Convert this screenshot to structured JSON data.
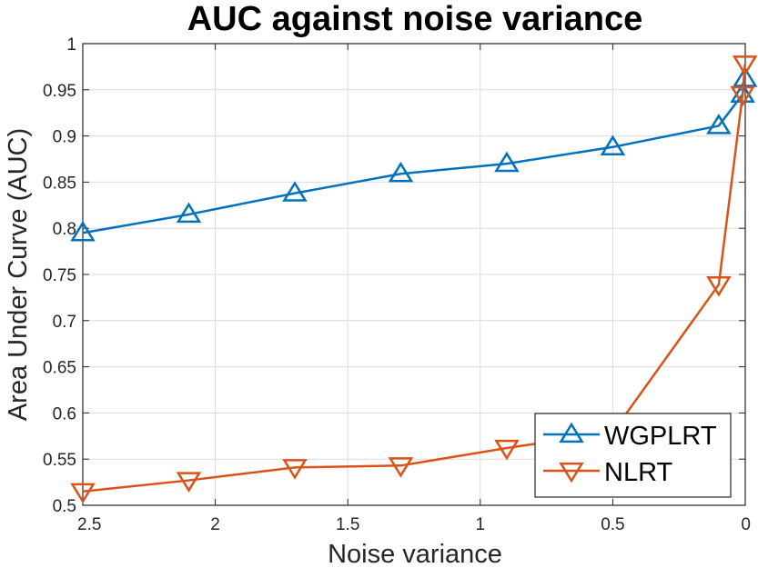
{
  "chart_data": {
    "type": "line",
    "title": "AUC against noise variance",
    "xlabel": "Noise variance",
    "ylabel": "Area Under Curve (AUC)",
    "xlim": [
      2.5,
      0
    ],
    "x_reversed": true,
    "ylim": [
      0.5,
      1
    ],
    "grid": true,
    "legend_position": "bottom-right",
    "xticks": [
      2.5,
      2,
      1.5,
      1,
      0.5,
      0
    ],
    "xtick_labels": [
      "2.5",
      "2",
      "1.5",
      "1",
      "0.5",
      "0"
    ],
    "yticks": [
      0.5,
      0.55,
      0.6,
      0.65,
      0.7,
      0.75,
      0.8,
      0.85,
      0.9,
      0.95,
      1
    ],
    "ytick_labels": [
      "0.5",
      "0.55",
      "0.6",
      "0.65",
      "0.7",
      "0.75",
      "0.8",
      "0.85",
      "0.9",
      "0.95",
      "1"
    ],
    "series": [
      {
        "name": "WGPLRT",
        "color": "#0072BD",
        "marker": "triangle-up",
        "x": [
          2.5,
          2.1,
          1.7,
          1.3,
          0.9,
          0.5,
          0.1,
          0.01,
          0.001
        ],
        "y": [
          0.795,
          0.815,
          0.838,
          0.859,
          0.87,
          0.888,
          0.911,
          0.945,
          0.962
        ]
      },
      {
        "name": "NLRT",
        "color": "#D95319",
        "marker": "triangle-down",
        "x": [
          2.5,
          2.1,
          1.7,
          1.3,
          0.9,
          0.5,
          0.1,
          0.01,
          0.001
        ],
        "y": [
          0.515,
          0.527,
          0.541,
          0.543,
          0.562,
          0.579,
          0.739,
          0.945,
          0.978
        ]
      }
    ]
  }
}
